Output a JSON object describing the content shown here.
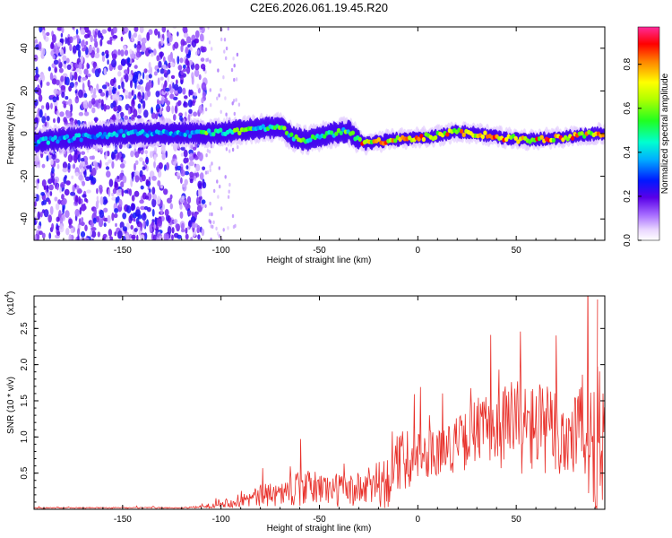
{
  "chart_data": [
    {
      "type": "heatmap",
      "title": "C2E6.2026.061.19.45.R20",
      "xlabel": "Height of straight line (km)",
      "ylabel": "Frequency (Hz)",
      "xlim": [
        -195,
        95
      ],
      "ylim": [
        -50,
        50
      ],
      "xticks": [
        -150,
        -100,
        -50,
        0,
        50
      ],
      "yticks": [
        -40,
        -20,
        0,
        20,
        40
      ],
      "colorbar": {
        "label": "Normalized spectral amplitude",
        "range": [
          0.0,
          0.97
        ],
        "ticks": [
          0.0,
          0.2,
          0.4,
          0.6,
          0.8
        ],
        "tick_labels": [
          "0.0",
          "0.2",
          "0.4",
          "0.6",
          "0.8"
        ]
      },
      "ridge": {
        "description_x": [
          -195,
          -150,
          -110,
          -95,
          -85,
          -70,
          -63,
          -55,
          -45,
          -35,
          -27,
          -15,
          0,
          10,
          20,
          30,
          45,
          55,
          70,
          80,
          90,
          95
        ],
        "center_hz": [
          -4,
          0,
          0,
          1,
          2,
          3,
          -2,
          -3,
          0,
          1,
          -5,
          -3,
          -2,
          -1,
          1,
          0,
          -2,
          -3,
          -2,
          -1,
          0,
          0
        ]
      }
    },
    {
      "type": "line",
      "xlabel": "Height of straight line (km)",
      "ylabel": "SNR (10 * v/v)",
      "multiplier_label": "(x10",
      "multiplier_exp": "4",
      "xlim": [
        -195,
        95
      ],
      "ylim": [
        0,
        2.95
      ],
      "xticks": [
        -150,
        -100,
        -50,
        0,
        50
      ],
      "yticks": [
        0.5,
        1.0,
        1.5,
        2.0,
        2.5
      ],
      "ytick_labels": [
        "0.5",
        "1.0",
        "1.5",
        "2.0",
        "2.5"
      ],
      "series": [
        {
          "name": "SNR",
          "color": "#e8302a",
          "x": [
            -195,
            -180,
            -160,
            -140,
            -120,
            -110,
            -105,
            -100,
            -95,
            -90,
            -85,
            -80,
            -75,
            -70,
            -65,
            -60,
            -55,
            -50,
            -45,
            -40,
            -35,
            -30,
            -25,
            -20,
            -17,
            -15,
            -12,
            -10,
            -5,
            0,
            5,
            10,
            15,
            20,
            25,
            28,
            30,
            35,
            40,
            45,
            50,
            55,
            60,
            65,
            70,
            75,
            80,
            85,
            88,
            90,
            92,
            95
          ],
          "baseline": [
            0.02,
            0.02,
            0.02,
            0.02,
            0.02,
            0.03,
            0.05,
            0.08,
            0.1,
            0.12,
            0.15,
            0.18,
            0.2,
            0.22,
            0.25,
            0.28,
            0.3,
            0.3,
            0.28,
            0.27,
            0.26,
            0.27,
            0.3,
            0.35,
            0.45,
            0.35,
            0.5,
            0.65,
            0.7,
            0.75,
            0.78,
            0.8,
            0.85,
            0.9,
            0.95,
            1.05,
            1.1,
            1.1,
            1.15,
            1.15,
            1.2,
            1.1,
            1.15,
            1.1,
            1.05,
            1.0,
            1.1,
            1.1,
            1.0,
            0.9,
            0.95,
            1.0
          ],
          "amplitude": [
            0.01,
            0.01,
            0.01,
            0.01,
            0.01,
            0.02,
            0.04,
            0.06,
            0.1,
            0.12,
            0.15,
            0.2,
            0.2,
            0.22,
            0.25,
            0.3,
            0.3,
            0.3,
            0.28,
            0.3,
            0.3,
            0.3,
            0.35,
            0.4,
            0.6,
            0.4,
            0.5,
            0.55,
            0.5,
            0.5,
            0.45,
            0.4,
            0.45,
            0.5,
            0.5,
            0.6,
            0.6,
            0.6,
            0.7,
            0.8,
            0.9,
            0.8,
            0.8,
            0.8,
            0.8,
            0.9,
            0.9,
            1.0,
            1.2,
            1.4,
            1.3,
            1.2
          ]
        }
      ]
    }
  ]
}
